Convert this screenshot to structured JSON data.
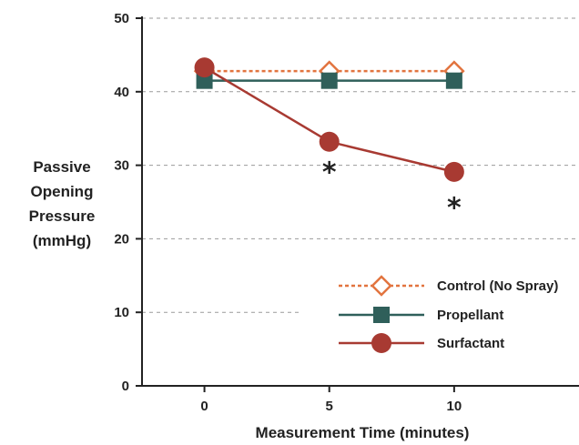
{
  "chart_data": {
    "type": "line",
    "title": "",
    "xlabel": "Measurement Time (minutes)",
    "ylabel_lines": [
      "Passive",
      "Opening",
      "Pressure",
      "(mmHg)"
    ],
    "x": [
      0,
      5,
      10
    ],
    "x_ticks": [
      "0",
      "5",
      "10"
    ],
    "y_ticks": [
      "0",
      "10",
      "20",
      "30",
      "40",
      "50"
    ],
    "xlim": [
      -2.5,
      15
    ],
    "ylim": [
      0,
      50
    ],
    "grid": true,
    "legend_position": "bottom-right",
    "series": [
      {
        "name": "Control (No Spray)",
        "values": [
          42.8,
          42.8,
          42.8
        ],
        "color": "#e2743f",
        "marker": "open-diamond",
        "line": "dotted"
      },
      {
        "name": "Propellant",
        "values": [
          41.5,
          41.5,
          41.5
        ],
        "color": "#2f5f5a",
        "marker": "filled-square",
        "line": "solid"
      },
      {
        "name": "Surfactant",
        "values": [
          43.3,
          33.2,
          29.1
        ],
        "color": "#a83a32",
        "marker": "filled-circle",
        "line": "solid"
      }
    ],
    "annotations": [
      {
        "text": "*",
        "x": 5,
        "y": 29.5
      },
      {
        "text": "*",
        "x": 10,
        "y": 24.7
      }
    ]
  }
}
